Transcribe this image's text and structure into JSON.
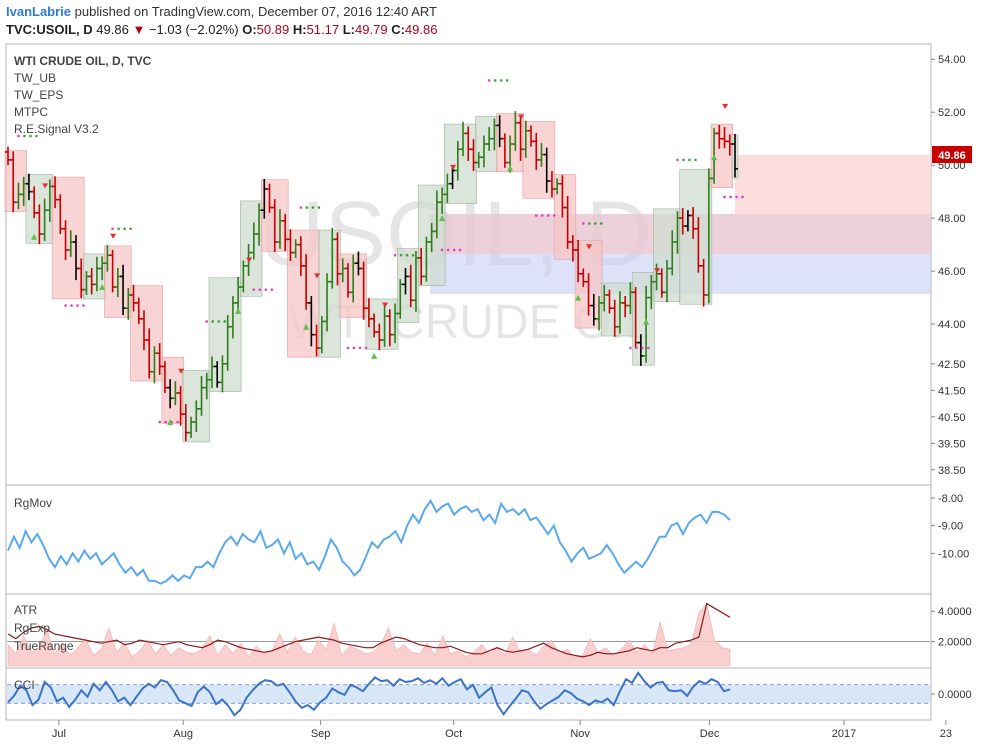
{
  "header": {
    "author": "IvanLabrie",
    "published": "published on TradingView.com, December 07, 2016 12:40 ART",
    "symbol": "TVC:USOIL, D",
    "last": "49.86",
    "change": "−1.03 (−2.02%)",
    "o_label": "O:",
    "o": "50.89",
    "h_label": "H:",
    "h": "51.17",
    "l_label": "L:",
    "l": "49.79",
    "c_label": "C:",
    "c": "49.86"
  },
  "main_pane": {
    "title": "WTI CRUDE OIL, D, TVC",
    "indicators": [
      "TW_UB",
      "TW_EPS",
      "MTPC",
      "R.E.Signal V3.2"
    ],
    "watermark_symbol": "USOIL, D",
    "watermark_name": "WTI CRUDE OIL",
    "price_label": "49.86"
  },
  "panes": {
    "rgmov": "RgMov",
    "atr": [
      "ATR",
      "RgExp",
      "TrueRange"
    ],
    "cci": "CCI"
  },
  "colors": {
    "up": "#2e7d1a",
    "down": "#c80000",
    "neutral": "#000000",
    "box_green": "#cfdccf",
    "box_red": "#f7c6c6",
    "rgmov": "#5aa9ef",
    "atr": "#8b1a1a",
    "tr_fill": "#f9caca",
    "cci": "#3a73c9",
    "cci_band": "#cfe2f7"
  },
  "chart_data": {
    "type": "ohlc",
    "y_ticks": [
      "54.00",
      "52.00",
      "50.00",
      "48.00",
      "46.00",
      "44.00",
      "42.50",
      "41.50",
      "40.50",
      "39.50",
      "38.50"
    ],
    "x_ticks": [
      "Jul",
      "Aug",
      "Sep",
      "Oct",
      "Nov",
      "Dec",
      "2017",
      "23"
    ],
    "ylim": [
      38.0,
      54.5
    ],
    "closes": [
      50.2,
      48.6,
      48.9,
      49.3,
      49.0,
      48.2,
      47.4,
      48.3,
      49.2,
      48.7,
      47.6,
      46.8,
      47.1,
      46.1,
      45.3,
      45.8,
      45.5,
      46.1,
      46.3,
      46.6,
      45.4,
      45.8,
      44.6,
      45.1,
      44.8,
      44.2,
      43.4,
      42.2,
      42.9,
      42.4,
      41.6,
      41.2,
      41.4,
      40.6,
      39.9,
      40.3,
      40.8,
      41.6,
      41.9,
      42.4,
      41.8,
      42.5,
      43.9,
      44.8,
      45.4,
      46.2,
      46.7,
      47.4,
      48.3,
      49.1,
      48.4,
      47.1,
      47.9,
      47.2,
      46.7,
      47.0,
      46.2,
      44.8,
      43.6,
      43.1,
      44.1,
      45.6,
      47.2,
      45.9,
      46.1,
      45.2,
      46.3,
      46.1,
      44.6,
      44.2,
      43.7,
      43.4,
      44.3,
      43.6,
      44.4,
      45.5,
      45.8,
      44.9,
      46.5,
      45.8,
      47.1,
      47.5,
      48.6,
      48.9,
      49.3,
      49.8,
      50.6,
      51.2,
      50.6,
      50.1,
      50.3,
      50.8,
      51.0,
      51.5,
      51.0,
      50.1,
      50.8,
      51.6,
      50.6,
      51.3,
      50.9,
      50.2,
      50.4,
      49.4,
      49.1,
      49.3,
      48.4,
      47.1,
      46.8,
      45.9,
      45.6,
      44.7,
      44.2,
      44.8,
      45.1,
      44.6,
      43.9,
      44.8,
      44.7,
      45.2,
      43.3,
      42.8,
      45.0,
      45.6,
      45.9,
      45.2,
      46.1,
      47.1,
      48.0,
      47.7,
      48.1,
      47.6,
      46.2,
      45.1,
      49.5,
      51.2,
      51.0,
      50.9,
      50.8,
      49.86
    ],
    "indicator_rgmov": {
      "yticks": [
        "-8.00",
        "-9.00",
        "-10.00"
      ],
      "values": [
        -9.9,
        -9.4,
        -9.8,
        -9.2,
        -9.6,
        -9.3,
        -9.7,
        -10.2,
        -10.5,
        -10.1,
        -10.4,
        -10.0,
        -10.3,
        -9.9,
        -10.2,
        -10.0,
        -10.4,
        -10.2,
        -10.0,
        -10.4,
        -10.7,
        -10.5,
        -10.8,
        -10.6,
        -11.0,
        -11.0,
        -11.1,
        -11.0,
        -10.8,
        -11.0,
        -10.8,
        -10.9,
        -10.5,
        -10.5,
        -10.3,
        -10.5,
        -10.0,
        -9.6,
        -9.4,
        -9.7,
        -9.3,
        -9.5,
        -9.6,
        -9.2,
        -9.8,
        -9.7,
        -9.5,
        -10.0,
        -9.6,
        -10.2,
        -10.0,
        -10.4,
        -10.3,
        -10.6,
        -10.1,
        -9.5,
        -9.8,
        -10.3,
        -10.5,
        -10.8,
        -10.6,
        -10.1,
        -9.6,
        -9.8,
        -9.5,
        -9.4,
        -9.2,
        -9.6,
        -9.0,
        -8.6,
        -8.9,
        -8.4,
        -8.1,
        -8.5,
        -8.3,
        -8.2,
        -8.6,
        -8.4,
        -8.3,
        -8.5,
        -8.4,
        -8.8,
        -8.6,
        -8.9,
        -8.2,
        -8.5,
        -8.4,
        -8.6,
        -8.4,
        -8.8,
        -8.7,
        -9.0,
        -9.3,
        -9.0,
        -9.6,
        -9.9,
        -10.3,
        -10.0,
        -9.8,
        -10.2,
        -10.1,
        -10.0,
        -9.7,
        -10.0,
        -10.4,
        -10.7,
        -10.5,
        -10.3,
        -10.5,
        -10.2,
        -9.8,
        -9.4,
        -9.4,
        -9.0,
        -8.9,
        -9.3,
        -8.9,
        -8.7,
        -8.6,
        -8.9,
        -8.5,
        -8.5,
        -8.6,
        -8.8
      ],
      "ylim": [
        -11.4,
        -7.6
      ]
    },
    "indicator_atr": {
      "yticks": [
        "4.0000",
        "2.0000"
      ],
      "atr": [
        2.5,
        2.2,
        2.6,
        2.9,
        3.0,
        2.8,
        2.5,
        2.4,
        2.3,
        2.2,
        2.1,
        2.0,
        1.9,
        2.0,
        2.1,
        1.8,
        1.9,
        2.1,
        2.0,
        1.9,
        1.8,
        1.9,
        2.0,
        1.8,
        1.7,
        1.6,
        1.8,
        2.1,
        2.0,
        1.8,
        1.6,
        1.5,
        1.4,
        1.3,
        1.4,
        1.6,
        1.8,
        2.0,
        2.1,
        2.2,
        2.3,
        2.2,
        2.1,
        1.9,
        1.8,
        1.7,
        1.6,
        1.6,
        1.9,
        2.1,
        2.3,
        2.2,
        2.0,
        1.8,
        1.7,
        1.6,
        1.6,
        1.7,
        1.5,
        1.3,
        1.2,
        1.2,
        1.4,
        1.6,
        1.4,
        1.3,
        1.4,
        1.5,
        1.7,
        1.9,
        1.6,
        1.4,
        1.2,
        1.1,
        1.0,
        1.1,
        1.3,
        1.2,
        1.2,
        1.3,
        1.4,
        1.6,
        1.5,
        1.4,
        1.6,
        1.6,
        1.9,
        2.0,
        2.1,
        2.3,
        4.5,
        4.2,
        3.9,
        3.6
      ],
      "tr": [
        1.8,
        1.2,
        2.4,
        1.3,
        1.6,
        2.8,
        1.2,
        1.9,
        1.1,
        1.6,
        2.2,
        1.1,
        1.5,
        2.9,
        1.3,
        1.9,
        1.0,
        1.4,
        2.1,
        1.2,
        1.8,
        1.1,
        1.6,
        1.3,
        1.2,
        1.5,
        2.4,
        1.1,
        1.8,
        1.2,
        1.9,
        1.0,
        1.7,
        1.2,
        1.4,
        2.5,
        1.3,
        2.3,
        1.4,
        1.1,
        2.1,
        1.5,
        3.2,
        1.1,
        1.7,
        1.5,
        1.2,
        1.3,
        1.8,
        2.9,
        1.4,
        1.8,
        1.3,
        1.2,
        1.9,
        1.1,
        2.4,
        1.2,
        1.4,
        1.0,
        1.3,
        1.8,
        1.2,
        1.6,
        1.1,
        2.3,
        1.3,
        1.5,
        1.1,
        1.7,
        2.1,
        1.2,
        1.5,
        1.0,
        1.1,
        2.2,
        1.3,
        1.6,
        1.1,
        1.5,
        2.1,
        1.3,
        1.8,
        1.2,
        3.3,
        1.4,
        1.5,
        1.6,
        1.8,
        3.9,
        4.5,
        2.1,
        1.6,
        1.5
      ],
      "ylim": [
        0.4,
        5.0
      ]
    },
    "indicator_cci": {
      "yticks": [
        "0.0000"
      ],
      "values": [
        -90,
        -20,
        90,
        40,
        -120,
        -60,
        130,
        70,
        -80,
        -40,
        -140,
        -60,
        40,
        -30,
        110,
        40,
        130,
        40,
        -80,
        -40,
        -120,
        -30,
        60,
        110,
        70,
        150,
        130,
        40,
        -70,
        -100,
        -130,
        20,
        80,
        20,
        -110,
        -60,
        -130,
        -230,
        -170,
        -40,
        40,
        110,
        150,
        140,
        90,
        110,
        20,
        -80,
        -150,
        -120,
        -170,
        -90,
        -40,
        60,
        20,
        -10,
        100,
        70,
        30,
        110,
        180,
        140,
        150,
        90,
        160,
        130,
        140,
        170,
        120,
        150,
        110,
        170,
        90,
        130,
        160,
        50,
        100,
        -40,
        20,
        70,
        -120,
        -220,
        -130,
        -50,
        40,
        20,
        -80,
        -160,
        -110,
        -70,
        -30,
        40,
        10,
        -50,
        -80,
        -120,
        -70,
        -90,
        -50,
        -120,
        30,
        160,
        120,
        230,
        140,
        70,
        120,
        130,
        40,
        30,
        40,
        -20,
        80,
        140,
        110,
        160,
        130,
        30,
        50
      ],
      "ylim": [
        -260,
        260
      ]
    }
  }
}
